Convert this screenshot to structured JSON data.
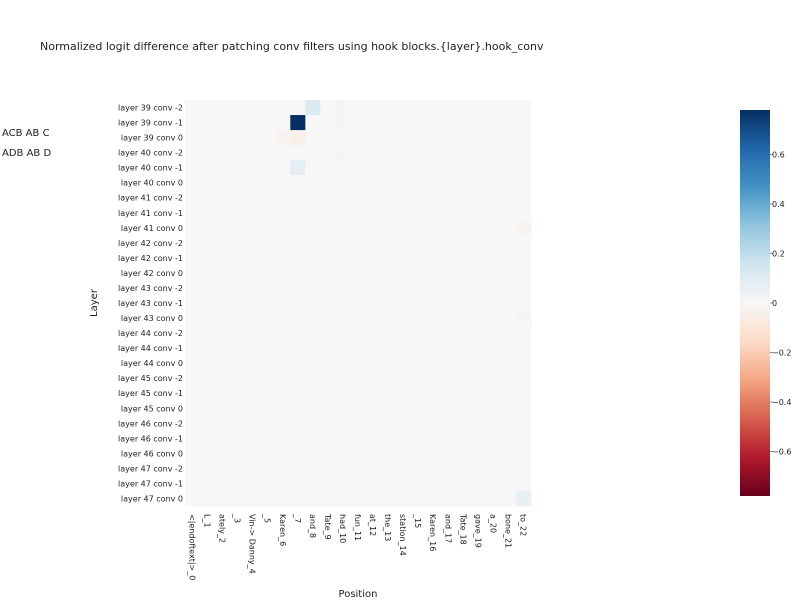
{
  "page": {
    "title": "Normalized logit difference after patching conv filters using hook blocks.{layer}.hook_conv",
    "side_labels": [
      "ACB AB C",
      "ADB AB D"
    ]
  },
  "chart_data": {
    "type": "heatmap",
    "title": "Normalized logit difference after patching conv filters using hook blocks.{layer}.hook_conv",
    "xlabel": "Position",
    "ylabel": "Layer",
    "x_labels": [
      "<|endoftext|>_0",
      "L_1",
      "ately_2",
      "_3",
      "Vin-> Danny_4",
      "_5",
      "Karen_6",
      "_7",
      "and_8",
      "Tate_9",
      "had_10",
      "fun_11",
      "at_12",
      "the_13",
      "station_14",
      "_15",
      "Karen_16",
      "and_17",
      "Tate_18",
      "gave_19",
      "a_20",
      "bone_21",
      "to_22"
    ],
    "y_labels": [
      "layer 39 conv -2",
      "layer 39 conv -1",
      "layer 39 conv 0",
      "layer 40 conv -2",
      "layer 40 conv -1",
      "layer 40 conv 0",
      "layer 41 conv -2",
      "layer 41 conv -1",
      "layer 41 conv 0",
      "layer 42 conv -2",
      "layer 42 conv -1",
      "layer 42 conv 0",
      "layer 43 conv -2",
      "layer 43 conv -1",
      "layer 43 conv 0",
      "layer 44 conv -2",
      "layer 44 conv -1",
      "layer 44 conv 0",
      "layer 45 conv -2",
      "layer 45 conv -1",
      "layer 45 conv 0",
      "layer 46 conv -2",
      "layer 46 conv -1",
      "layer 46 conv 0",
      "layer 47 conv -2",
      "layer 47 conv -1",
      "layer 47 conv 0"
    ],
    "values": [
      [
        0,
        0,
        0,
        0,
        0,
        0,
        0,
        0,
        0.12,
        0,
        -0.01,
        0,
        0,
        0,
        0,
        0,
        0,
        0,
        0,
        0,
        0,
        0,
        0
      ],
      [
        0,
        0,
        0,
        0,
        0,
        0,
        0,
        0.78,
        0,
        0,
        -0.01,
        0,
        0,
        0,
        0,
        0,
        0,
        0,
        0,
        0,
        0,
        0,
        0
      ],
      [
        0,
        0,
        0,
        0,
        0,
        0,
        -0.02,
        -0.04,
        0,
        0,
        0,
        0,
        0,
        0,
        0,
        0,
        0,
        0,
        0,
        0,
        0,
        0,
        0
      ],
      [
        0,
        0,
        0,
        0,
        0,
        0,
        0,
        0,
        0,
        0,
        -0.01,
        0,
        0,
        0,
        0,
        0,
        0,
        0,
        0,
        0,
        0,
        0,
        0
      ],
      [
        0,
        0,
        0,
        0,
        0,
        0,
        0,
        0.08,
        0,
        0,
        0,
        0,
        0,
        0,
        0,
        0,
        0,
        0,
        0,
        0,
        0,
        0,
        0
      ],
      [
        0,
        0,
        0,
        0,
        0,
        0,
        0,
        0,
        0,
        0,
        0,
        0,
        0,
        0,
        0,
        0,
        0,
        0,
        0,
        0,
        0,
        0,
        0
      ],
      [
        0,
        0,
        0,
        0,
        0,
        0,
        0,
        0,
        0,
        0,
        0,
        0,
        0,
        0,
        0,
        0,
        0,
        0,
        0,
        0,
        0,
        0,
        0
      ],
      [
        0,
        0,
        0,
        0,
        0,
        0,
        0,
        0,
        0,
        0,
        0,
        0,
        0,
        0,
        0,
        0,
        0,
        0,
        0,
        0,
        0,
        0,
        0
      ],
      [
        0,
        0,
        0,
        0,
        0,
        0,
        0,
        0,
        0,
        0,
        0,
        0,
        0,
        0,
        0,
        0,
        0,
        0,
        0,
        0,
        0,
        0,
        -0.02
      ],
      [
        0,
        0,
        0,
        0,
        0,
        0,
        0,
        0,
        0,
        0,
        0,
        0,
        0,
        0,
        0,
        0,
        0,
        0,
        0,
        0,
        0,
        0,
        0
      ],
      [
        0,
        0,
        0,
        0,
        0,
        0,
        0,
        0,
        0,
        0,
        0,
        0,
        0,
        0,
        0,
        0,
        0,
        0,
        0,
        0,
        0,
        0,
        0
      ],
      [
        0,
        0,
        0,
        0,
        0,
        0,
        0,
        0,
        0,
        0,
        0,
        0,
        0,
        0,
        0,
        0,
        0,
        0,
        0,
        0,
        0,
        0,
        0
      ],
      [
        0,
        0,
        0,
        0,
        0,
        0,
        0,
        0,
        0,
        0,
        0,
        0,
        0,
        0,
        0,
        0,
        0,
        0,
        0,
        0,
        0,
        0,
        0
      ],
      [
        0,
        0,
        0,
        0,
        0,
        0,
        0,
        0,
        0,
        0,
        0,
        0,
        0,
        0,
        0,
        0,
        0,
        0,
        0,
        0,
        0,
        0,
        0
      ],
      [
        0,
        0,
        0,
        0,
        0,
        0,
        0,
        0,
        0,
        0,
        0,
        0,
        0,
        0,
        0,
        0,
        0,
        0,
        0,
        0,
        0,
        0,
        -0.01
      ],
      [
        0,
        0,
        0,
        0,
        0,
        0,
        0,
        0,
        0,
        0,
        0,
        0,
        0,
        0,
        0,
        0,
        0,
        0,
        0,
        0,
        0,
        0,
        0
      ],
      [
        0,
        0,
        0,
        0,
        0,
        0,
        0,
        0,
        0,
        0,
        0,
        0,
        0,
        0,
        0,
        0,
        0,
        0,
        0,
        0,
        0,
        0,
        0
      ],
      [
        0,
        0,
        0,
        0,
        0,
        0,
        0,
        0,
        0,
        0,
        0,
        0,
        0,
        0,
        0,
        0,
        0,
        0,
        0,
        0,
        0,
        0,
        0
      ],
      [
        0,
        0,
        0,
        0,
        0,
        0,
        0,
        0,
        0,
        0,
        0,
        0,
        0,
        0,
        0,
        0,
        0,
        0,
        0,
        0,
        0,
        0,
        0
      ],
      [
        0,
        0,
        0,
        0,
        0,
        0,
        0,
        0,
        0,
        0,
        0,
        0,
        0,
        0,
        0,
        0,
        0,
        0,
        0,
        0,
        0,
        0,
        0
      ],
      [
        0,
        0,
        0,
        0,
        0,
        0,
        0,
        0,
        0,
        0,
        0,
        0,
        0,
        0,
        0,
        0,
        0,
        0,
        0,
        0,
        0,
        0,
        0
      ],
      [
        0,
        0,
        0,
        0,
        0,
        0,
        0,
        0,
        0,
        0,
        0,
        0,
        0,
        0,
        0,
        0,
        0,
        0,
        0,
        0,
        0,
        0,
        0
      ],
      [
        0,
        0,
        0,
        0,
        0,
        0,
        0,
        0,
        0,
        0,
        0,
        0,
        0,
        0,
        0,
        0,
        0,
        0,
        0,
        0,
        0,
        0,
        0
      ],
      [
        0,
        0,
        0,
        0,
        0,
        0,
        0,
        0,
        0,
        0,
        0,
        0,
        0,
        0,
        0,
        0,
        0,
        0,
        0,
        0,
        0,
        0,
        0
      ],
      [
        0,
        0,
        0,
        0,
        0,
        0,
        0,
        0,
        0,
        0,
        0,
        0,
        0,
        0,
        0,
        0,
        0,
        0,
        0,
        0,
        0,
        0,
        0
      ],
      [
        0,
        0,
        0,
        0,
        0,
        0,
        0,
        0,
        0,
        0,
        0,
        0,
        0,
        0,
        0,
        0,
        0,
        0,
        0,
        0,
        0,
        0,
        0
      ],
      [
        0,
        0,
        0,
        0,
        0,
        0,
        0,
        0,
        0,
        0,
        0,
        0,
        0,
        0,
        0,
        0,
        0,
        0,
        0,
        0,
        0,
        0,
        0.06
      ]
    ],
    "colorscale": {
      "name": "RdBu",
      "zmin": -0.78,
      "zmax": 0.78,
      "ticks": [
        0.6,
        0.4,
        0.2,
        0,
        -0.2,
        -0.4,
        -0.6
      ],
      "tick_labels": [
        "0.6",
        "0.4",
        "0.2",
        "0",
        "−0.2",
        "−0.4",
        "−0.6"
      ],
      "stops": [
        "#67001f",
        "#b2182b",
        "#d6604d",
        "#f4a582",
        "#fddbc7",
        "#f7f7f7",
        "#d1e5f0",
        "#92c5de",
        "#4393c3",
        "#2166ac",
        "#053061"
      ]
    },
    "grid": false,
    "legend": "colorbar-right"
  }
}
